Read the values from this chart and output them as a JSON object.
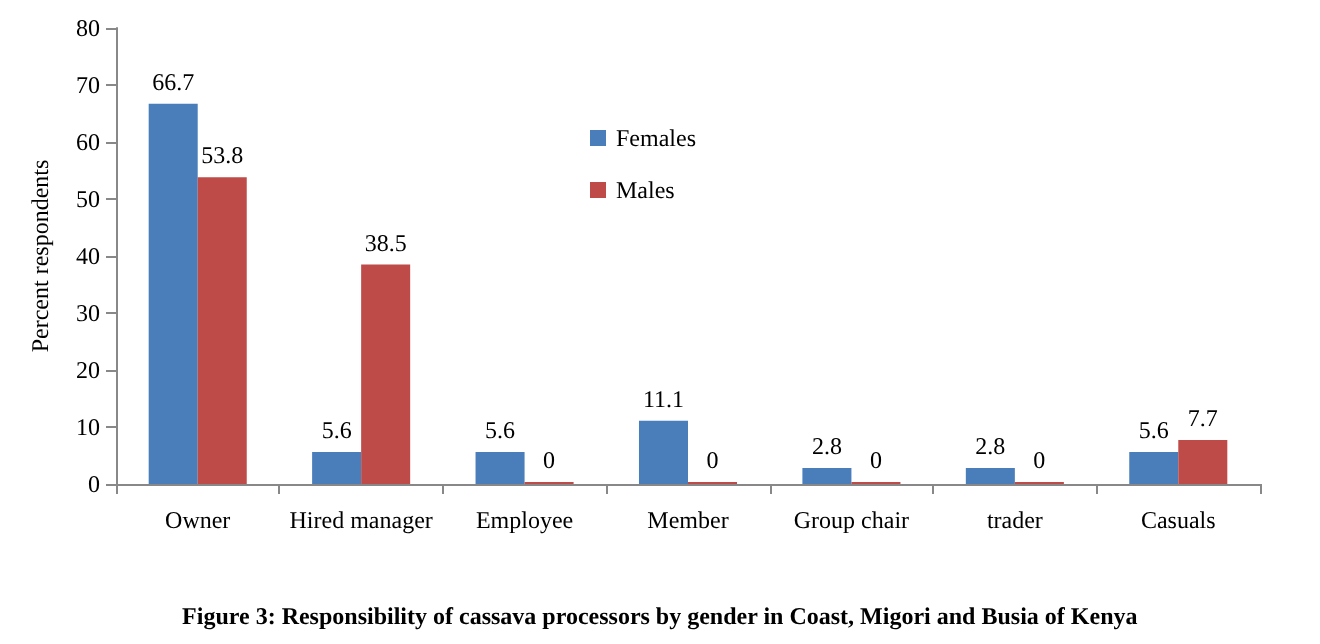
{
  "chart_data": {
    "type": "bar",
    "ylabel": "Percent respondents",
    "categories": [
      "Owner",
      "Hired manager",
      "Employee",
      "Member",
      "Group chair",
      "trader",
      "Casuals"
    ],
    "series": [
      {
        "name": "Females",
        "color": "#4a7ebb",
        "values": [
          66.7,
          5.6,
          5.6,
          11.1,
          2.8,
          2.8,
          5.6
        ]
      },
      {
        "name": "Males",
        "color": "#be4b48",
        "values": [
          53.8,
          38.5,
          0,
          0,
          0,
          0,
          7.7
        ]
      }
    ],
    "ylim": [
      0,
      80
    ],
    "yticks": [
      0,
      10,
      20,
      30,
      40,
      50,
      60,
      70,
      80
    ],
    "data_labels": true,
    "grid": false,
    "legend": "top center",
    "annotations": [
      "Figure 3: Responsibility of cassava processors by gender in Coast, Migori and Busia of Kenya"
    ]
  }
}
